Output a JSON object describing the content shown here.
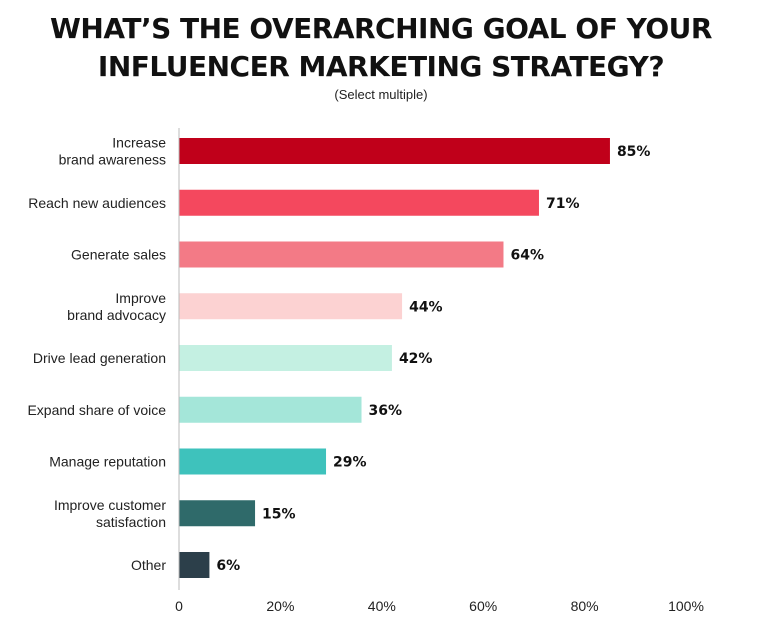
{
  "chart_data": {
    "type": "bar",
    "orientation": "horizontal",
    "title_lines": [
      "WHAT’S THE OVERARCHING GOAL OF YOUR",
      "INFLUENCER MARKETING STRATEGY?"
    ],
    "subtitle": "(Select multiple)",
    "categories": [
      [
        "Increase",
        "brand awareness"
      ],
      [
        "Reach new audiences"
      ],
      [
        "Generate sales"
      ],
      [
        "Improve",
        "brand advocacy"
      ],
      [
        "Drive lead generation"
      ],
      [
        "Expand share of voice"
      ],
      [
        "Manage reputation"
      ],
      [
        "Improve customer",
        "satisfaction"
      ],
      [
        "Other"
      ]
    ],
    "values": [
      85,
      71,
      64,
      44,
      42,
      36,
      29,
      15,
      6
    ],
    "value_labels": [
      "85%",
      "71%",
      "64%",
      "44%",
      "42%",
      "36%",
      "29%",
      "15%",
      "6%"
    ],
    "bar_colors": [
      "#c0001a",
      "#f4485e",
      "#f37a86",
      "#fcd2d2",
      "#c4f0e2",
      "#a4e6d9",
      "#3ec2bc",
      "#2f6a6a",
      "#2c3f4a"
    ],
    "xlim": [
      0,
      100
    ],
    "xticks": [
      0,
      20,
      40,
      60,
      80,
      100
    ],
    "xtick_labels": [
      "0",
      "20%",
      "40%",
      "60%",
      "80%",
      "100%"
    ],
    "grid": false,
    "axis_color": "#bbbbbb"
  }
}
